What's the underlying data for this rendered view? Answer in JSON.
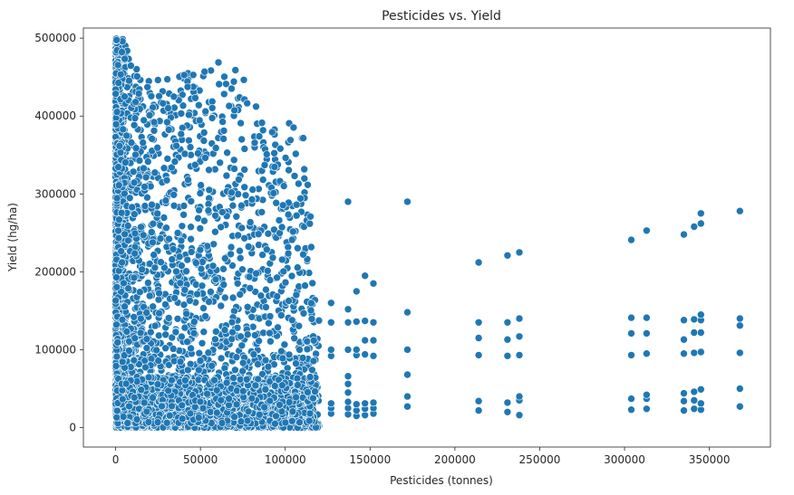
{
  "chart_data": {
    "type": "scatter",
    "title": "Pesticides vs. Yield",
    "xlabel": "Pesticides (tonnes)",
    "ylabel": "Yield (hg/ha)",
    "xlim": [
      -19000,
      386000
    ],
    "ylim": [
      -25000,
      513000
    ],
    "xticks": [
      0,
      50000,
      100000,
      150000,
      200000,
      250000,
      300000,
      350000
    ],
    "yticks": [
      0,
      100000,
      200000,
      300000,
      400000,
      500000
    ],
    "grid": false,
    "legend": "none",
    "marker_color": "#1f77b4",
    "x_clusters": [
      {
        "x": 127000,
        "values": [
          18000,
          25000,
          31000,
          92000,
          100000,
          135000,
          160000
        ]
      },
      {
        "x": 137000,
        "values": [
          17000,
          25000,
          33000,
          45000,
          56000,
          66000,
          100000,
          135000,
          152000,
          290000
        ]
      },
      {
        "x": 142000,
        "values": [
          15000,
          22000,
          30000,
          93000,
          100000,
          136000,
          175000
        ]
      },
      {
        "x": 147000,
        "values": [
          16000,
          24000,
          31000,
          94000,
          112000,
          137000,
          195000
        ]
      },
      {
        "x": 152000,
        "values": [
          18000,
          25000,
          32000,
          92000,
          112000,
          135000,
          185000
        ]
      },
      {
        "x": 172000,
        "values": [
          27000,
          40000,
          68000,
          100000,
          148000,
          290000
        ]
      },
      {
        "x": 214000,
        "values": [
          22000,
          34000,
          93000,
          115000,
          135000,
          212000
        ]
      },
      {
        "x": 231000,
        "values": [
          20000,
          32000,
          92000,
          113000,
          135000,
          221000
        ]
      },
      {
        "x": 238000,
        "values": [
          16000,
          35000,
          40000,
          93000,
          117000,
          140000,
          225000
        ]
      },
      {
        "x": 304000,
        "values": [
          23000,
          37000,
          93000,
          121000,
          141000,
          241000
        ]
      },
      {
        "x": 313000,
        "values": [
          24000,
          37000,
          42000,
          95000,
          121000,
          141000,
          253000
        ]
      },
      {
        "x": 335000,
        "values": [
          22000,
          34000,
          44000,
          95000,
          113000,
          138000,
          248000
        ]
      },
      {
        "x": 341000,
        "values": [
          24000,
          35000,
          46000,
          96000,
          122000,
          139000,
          258000
        ]
      },
      {
        "x": 345000,
        "values": [
          23000,
          31000,
          49000,
          97000,
          122000,
          138000,
          145000,
          262000,
          275000
        ]
      },
      {
        "x": 368000,
        "values": [
          27000,
          50000,
          96000,
          131000,
          140000,
          278000
        ]
      }
    ],
    "dense_region_envelope": [
      {
        "x": 0,
        "max_yield": 500000
      },
      {
        "x": 5000,
        "max_yield": 500000
      },
      {
        "x": 10000,
        "max_yield": 470000
      },
      {
        "x": 20000,
        "max_yield": 445000
      },
      {
        "x": 40000,
        "max_yield": 455000
      },
      {
        "x": 60000,
        "max_yield": 470000
      },
      {
        "x": 75000,
        "max_yield": 455000
      },
      {
        "x": 90000,
        "max_yield": 380000
      },
      {
        "x": 100000,
        "max_yield": 395000
      },
      {
        "x": 110000,
        "max_yield": 398000
      },
      {
        "x": 120000,
        "max_yield": 155000
      }
    ]
  }
}
